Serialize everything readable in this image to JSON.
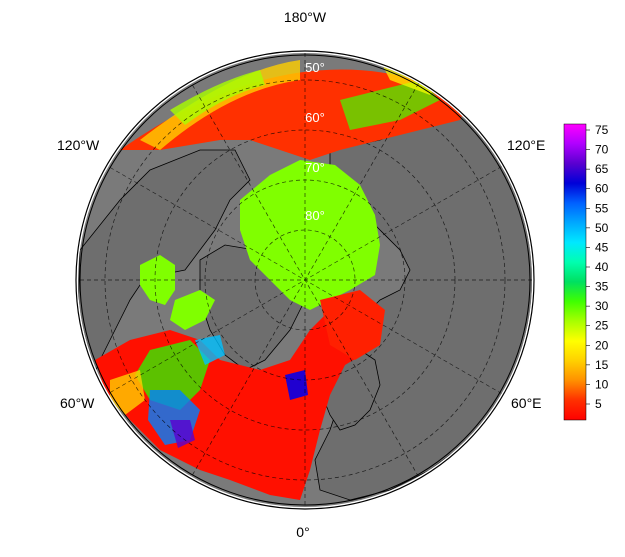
{
  "map": {
    "projection": "north-polar-stereographic",
    "background_color": "#7a7a7a",
    "land_fill": "#6e6e6e",
    "coast_color": "#000000",
    "ocean_fill": "#7a7a7a",
    "graticule_style": "dashed",
    "longitude_labels": {
      "top": "180°W",
      "upper_left": "120°W",
      "upper_right": "120°E",
      "lower_left": "60°W",
      "lower_right": "60°E",
      "bottom": "0°"
    },
    "latitude_labels": [
      "50°",
      "60°",
      "70°",
      "80°"
    ]
  },
  "colorbar": {
    "tick_labels": [
      "75",
      "70",
      "65",
      "60",
      "55",
      "50",
      "45",
      "40",
      "35",
      "30",
      "25",
      "20",
      "15",
      "10",
      "5"
    ],
    "stops": [
      "#ff00ff",
      "#b000ff",
      "#5a00d0",
      "#0000d8",
      "#0060ff",
      "#00a8ff",
      "#00e8ff",
      "#00ffb0",
      "#00e060",
      "#40ff00",
      "#a8ff00",
      "#ffff00",
      "#ffd000",
      "#ff9000",
      "#ff3000",
      "#ff0000"
    ]
  }
}
